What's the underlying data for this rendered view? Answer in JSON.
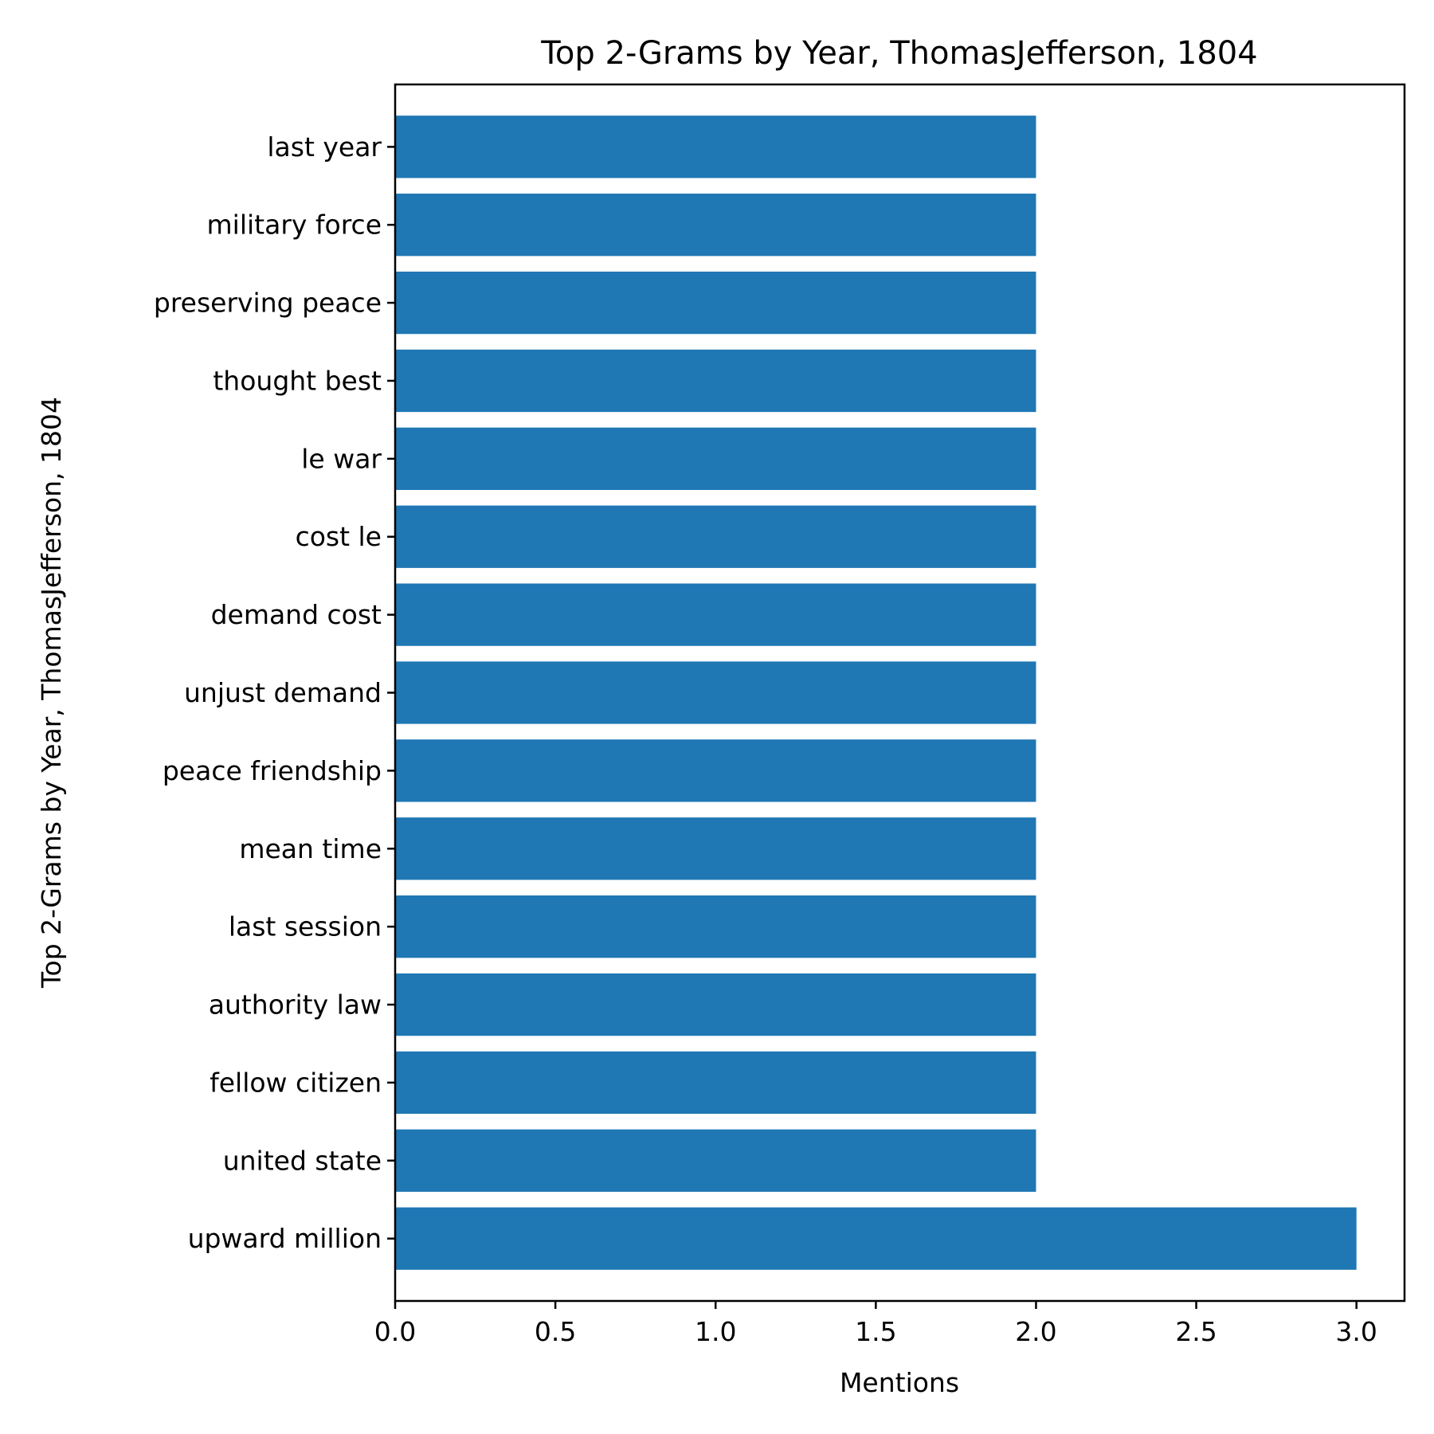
{
  "chart_data": {
    "type": "bar",
    "orientation": "horizontal",
    "title": "Top 2-Grams by Year, ThomasJefferson, 1804",
    "xlabel": "Mentions",
    "ylabel": "Top 2-Grams by Year, ThomasJefferson, 1804",
    "xlim": [
      0,
      3.15
    ],
    "xticks": [
      "0.0",
      "0.5",
      "1.0",
      "1.5",
      "2.0",
      "2.5",
      "3.0"
    ],
    "xtick_values": [
      0,
      0.5,
      1.0,
      1.5,
      2.0,
      2.5,
      3.0
    ],
    "categories": [
      "upward million",
      "united state",
      "fellow citizen",
      "authority law",
      "last session",
      "mean time",
      "peace friendship",
      "unjust demand",
      "demand cost",
      "cost le",
      "le war",
      "thought best",
      "preserving peace",
      "military force",
      "last year"
    ],
    "values": [
      3,
      2,
      2,
      2,
      2,
      2,
      2,
      2,
      2,
      2,
      2,
      2,
      2,
      2,
      2
    ],
    "bar_color": "#1f77b4",
    "grid": false,
    "legend": "none"
  }
}
